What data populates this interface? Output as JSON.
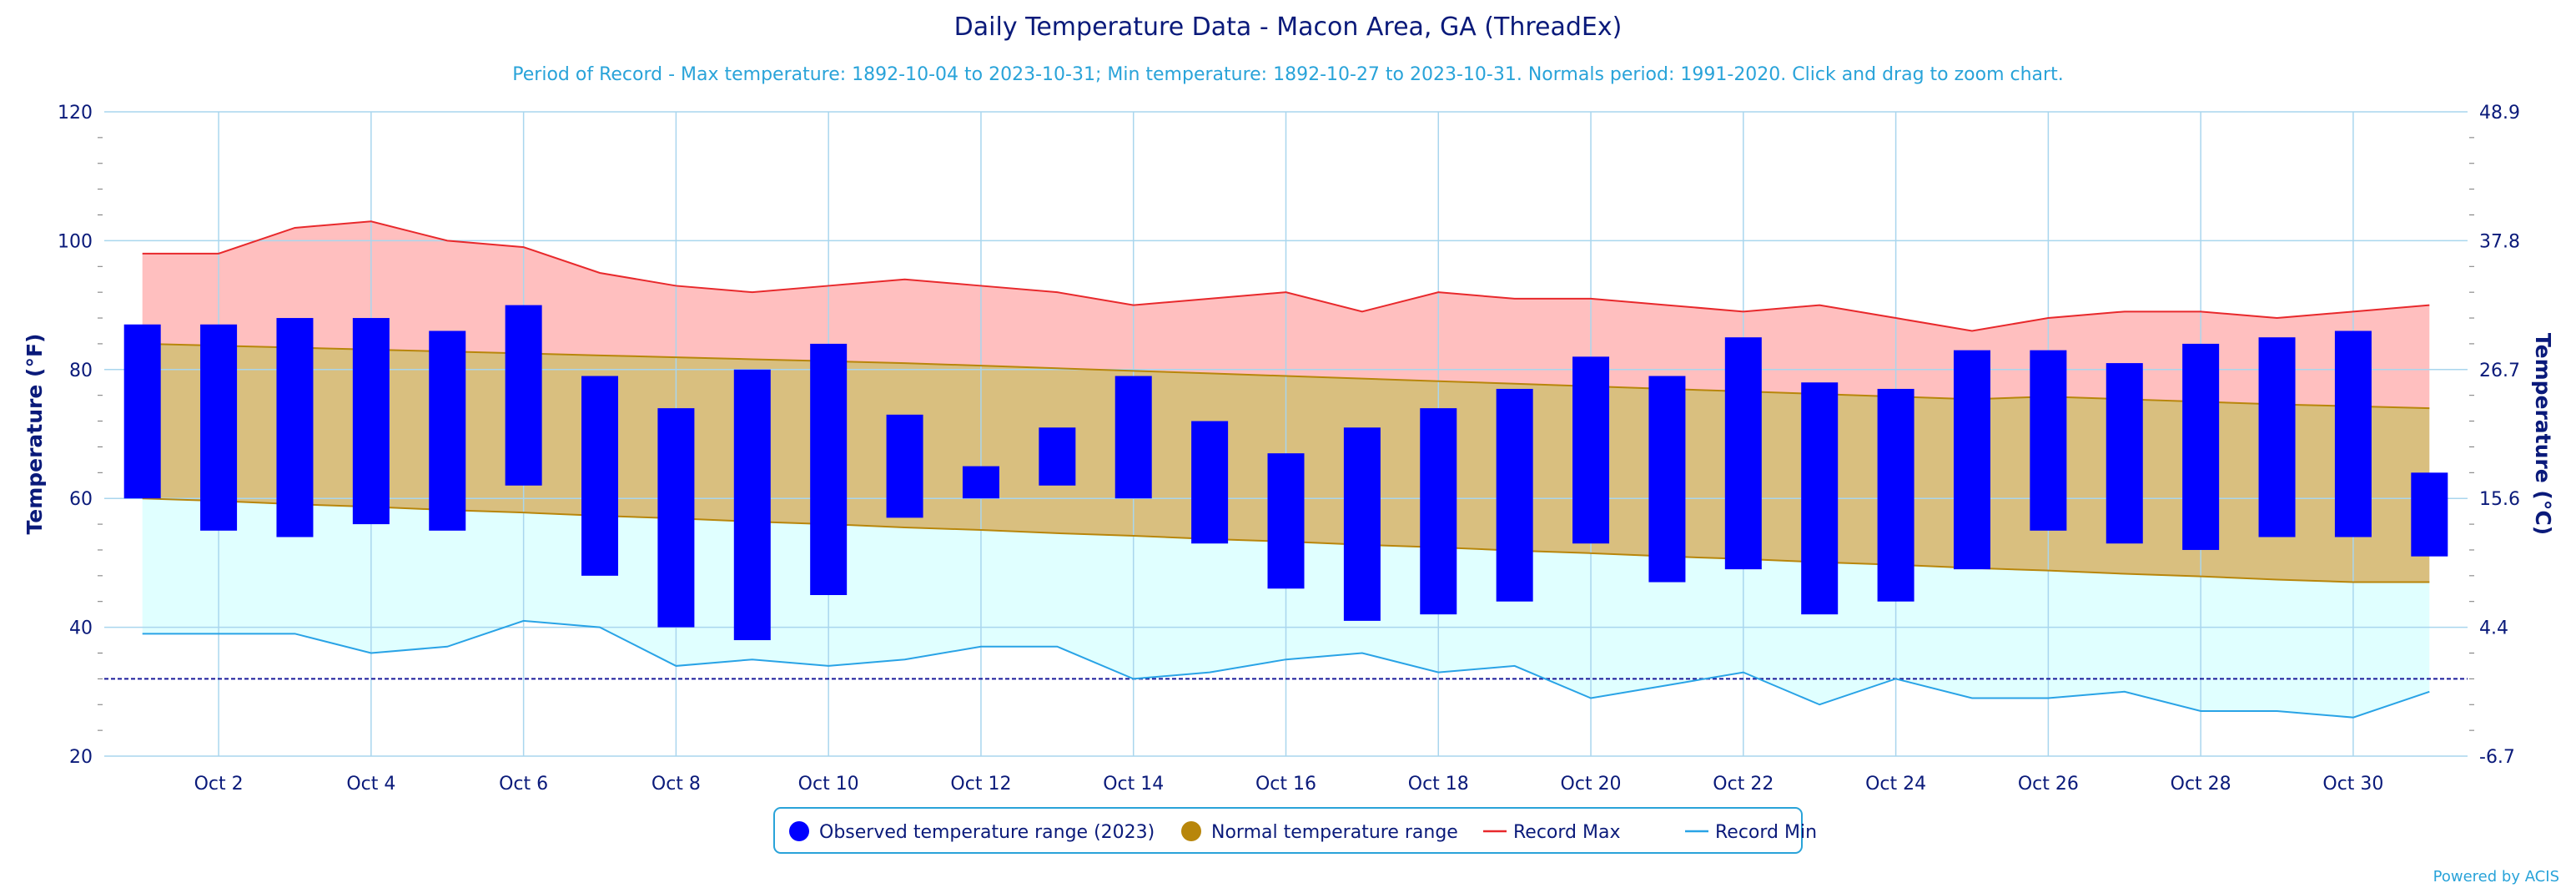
{
  "title": "Daily Temperature Data - Macon Area, GA (ThreadEx)",
  "subtitle": "Period of Record - Max temperature: 1892-10-04 to 2023-10-31; Min temperature: 1892-10-27 to 2023-10-31. Normals period: 1991-2020. Click and drag to zoom chart.",
  "credit": "Powered by ACIS",
  "colors": {
    "observed": "#0000ff",
    "normal_fill": "#d9bf7f",
    "normal_line": "#b8860b",
    "normal_legend": "#b8860b",
    "record_max_line": "#e8292c",
    "record_max_fill": "#ffbfbf",
    "record_min_line": "#29a3e6",
    "record_min_fill": "#e0ffff",
    "grid": "#a9d6ee",
    "freezing_line": "#1a1a9a",
    "text": "#0a1a7a"
  },
  "chart_data": {
    "type": "bar",
    "title": "Daily Temperature Data - Macon Area, GA (ThreadEx)",
    "ylabel_left": "Temperature (°F)",
    "ylabel_right": "Temperature (°C)",
    "ylim": [
      20,
      120
    ],
    "yticks_left": [
      "20",
      "40",
      "60",
      "80",
      "100",
      "120"
    ],
    "yticks_left_values": [
      20,
      40,
      60,
      80,
      100,
      120
    ],
    "yticks_right": [
      "-6.7",
      "4.4",
      "15.6",
      "26.7",
      "37.8",
      "48.9"
    ],
    "x_days": [
      1,
      2,
      3,
      4,
      5,
      6,
      7,
      8,
      9,
      10,
      11,
      12,
      13,
      14,
      15,
      16,
      17,
      18,
      19,
      20,
      21,
      22,
      23,
      24,
      25,
      26,
      27,
      28,
      29,
      30,
      31
    ],
    "xtick_days": [
      2,
      4,
      6,
      8,
      10,
      12,
      14,
      16,
      18,
      20,
      22,
      24,
      26,
      28,
      30
    ],
    "xtick_labels": [
      "Oct 2",
      "Oct 4",
      "Oct 6",
      "Oct 8",
      "Oct 10",
      "Oct 12",
      "Oct 14",
      "Oct 16",
      "Oct 18",
      "Oct 20",
      "Oct 22",
      "Oct 24",
      "Oct 26",
      "Oct 28",
      "Oct 30"
    ],
    "freezing_line": 32,
    "series": [
      {
        "name": "Observed temperature range (2023)",
        "type": "range",
        "low": [
          60,
          55,
          54,
          56,
          55,
          62,
          48,
          40,
          38,
          45,
          57,
          60,
          62,
          60,
          53,
          46,
          41,
          42,
          44,
          53,
          47,
          49,
          42,
          44,
          49,
          55,
          53,
          52,
          54,
          54,
          51
        ],
        "high": [
          87,
          87,
          88,
          88,
          86,
          90,
          79,
          74,
          80,
          84,
          73,
          65,
          71,
          79,
          72,
          67,
          71,
          74,
          77,
          82,
          79,
          85,
          78,
          77,
          83,
          83,
          81,
          84,
          85,
          86,
          64
        ]
      },
      {
        "name": "Normal temperature range",
        "type": "area-range",
        "low": [
          60,
          59.6,
          59.1,
          58.7,
          58.2,
          57.8,
          57.3,
          56.9,
          56.4,
          56,
          55.5,
          55.1,
          54.6,
          54.2,
          53.7,
          53.3,
          52.8,
          52.4,
          51.9,
          51.5,
          51,
          50.6,
          50.1,
          49.7,
          49.2,
          48.8,
          48.3,
          47.9,
          47.4,
          47,
          47
        ],
        "high": [
          84,
          83.7,
          83.4,
          83.1,
          82.8,
          82.5,
          82.2,
          81.9,
          81.6,
          81.3,
          81,
          80.6,
          80.2,
          79.8,
          79.4,
          79,
          78.6,
          78.2,
          77.8,
          77.4,
          77,
          76.6,
          76.2,
          75.8,
          75.4,
          75.8,
          75.4,
          75,
          74.6,
          74.3,
          74
        ]
      },
      {
        "name": "Record Max",
        "type": "line",
        "values": [
          98,
          98,
          102,
          103,
          100,
          99,
          95,
          93,
          92,
          93,
          94,
          93,
          92,
          90,
          91,
          92,
          89,
          92,
          91,
          91,
          90,
          89,
          90,
          88,
          86,
          88,
          89,
          89,
          88,
          89,
          90
        ]
      },
      {
        "name": "Record Min",
        "type": "line",
        "values": [
          39,
          39,
          39,
          36,
          37,
          41,
          40,
          34,
          35,
          34,
          35,
          37,
          37,
          32,
          33,
          35,
          36,
          33,
          34,
          29,
          31,
          33,
          28,
          32,
          29,
          29,
          30,
          27,
          27,
          26,
          30
        ]
      }
    ],
    "legend": {
      "placement": "bottom-center",
      "items": [
        {
          "label": "Observed temperature range (2023)",
          "symbol": "circle",
          "color": "#0000ff"
        },
        {
          "label": "Normal temperature range",
          "symbol": "circle",
          "color": "#b8860b"
        },
        {
          "label": "Record Max",
          "symbol": "line",
          "color": "#e8292c"
        },
        {
          "label": "Record Min",
          "symbol": "line",
          "color": "#29a3e6"
        }
      ]
    },
    "grid": true
  }
}
